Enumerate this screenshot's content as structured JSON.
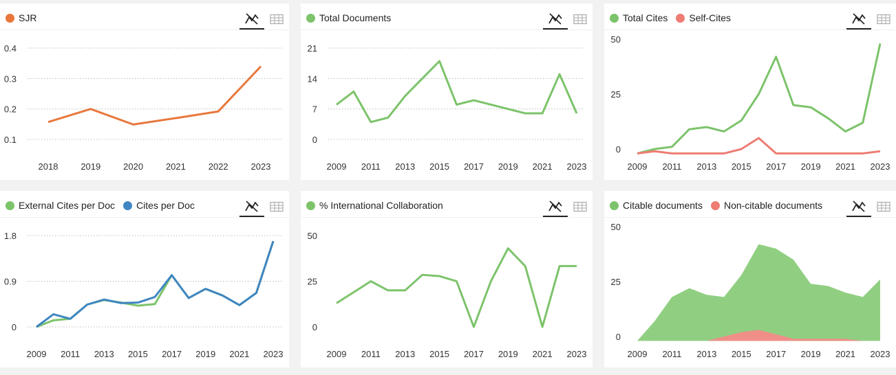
{
  "colors": {
    "orange": "#e8773d",
    "green": "#7cc36a",
    "blue": "#3f86c2",
    "red": "#ee7c73",
    "area_green": "#90cf82",
    "area_red": "#f08f87",
    "grid": "#bbbbbb"
  },
  "icons": {
    "chart_view": "line-chart-icon",
    "table_view": "table-grid-icon"
  },
  "chart_data": [
    {
      "type": "line",
      "legend": [
        {
          "name": "SJR",
          "color": "#e8773d"
        }
      ],
      "x": [
        2018,
        2019,
        2020,
        2021,
        2022,
        2023
      ],
      "x_ticks": [
        "2018",
        "2019",
        "2020",
        "2021",
        "2022",
        "2023"
      ],
      "y_ticks": [
        "0.1",
        "0.2",
        "0.3",
        "0.4"
      ],
      "y_tick_values": [
        0.1,
        0.2,
        0.3,
        0.4
      ],
      "ylim": [
        0.1,
        0.4
      ],
      "grid": true,
      "series": [
        {
          "name": "SJR",
          "color": "#e8773d",
          "values": [
            0.157,
            0.2,
            0.149,
            0.17,
            0.192,
            0.34
          ]
        }
      ]
    },
    {
      "type": "line",
      "legend": [
        {
          "name": "Total Documents",
          "color": "#7cc36a"
        }
      ],
      "x": [
        2009,
        2010,
        2011,
        2012,
        2013,
        2014,
        2015,
        2016,
        2017,
        2018,
        2019,
        2020,
        2021,
        2022,
        2023
      ],
      "x_ticks": [
        "2009",
        "2011",
        "2013",
        "2015",
        "2017",
        "2019",
        "2021",
        "2023"
      ],
      "y_ticks": [
        "0",
        "7",
        "14",
        "21"
      ],
      "y_tick_values": [
        0,
        7,
        14,
        21
      ],
      "ylim": [
        0,
        21
      ],
      "grid": true,
      "series": [
        {
          "name": "Total Documents",
          "color": "#7cc36a",
          "values": [
            8,
            11,
            4,
            5,
            10,
            14,
            18,
            8,
            9,
            8,
            7,
            6,
            6,
            15,
            6
          ]
        }
      ]
    },
    {
      "type": "line",
      "legend": [
        {
          "name": "Total Cites",
          "color": "#7cc36a"
        },
        {
          "name": "Self-Cites",
          "color": "#ee7c73"
        }
      ],
      "x": [
        2009,
        2010,
        2011,
        2012,
        2013,
        2014,
        2015,
        2016,
        2017,
        2018,
        2019,
        2020,
        2021,
        2022,
        2023
      ],
      "x_ticks": [
        "2009",
        "2011",
        "2013",
        "2015",
        "2017",
        "2019",
        "2021",
        "2023"
      ],
      "y_ticks": [
        "0",
        "25",
        "50"
      ],
      "y_tick_values": [
        0,
        25,
        50
      ],
      "ylim": [
        0,
        50
      ],
      "grid": false,
      "series": [
        {
          "name": "Total Cites",
          "color": "#7cc36a",
          "values": [
            -2,
            0,
            1,
            9,
            10,
            8,
            13,
            25,
            42,
            20,
            19,
            14,
            8,
            12,
            48
          ]
        },
        {
          "name": "Self-Cites",
          "color": "#ee7c73",
          "values": [
            -2,
            -1,
            -2,
            -2,
            -2,
            -2,
            0,
            5,
            -2,
            -2,
            -2,
            -2,
            -2,
            -2,
            -1
          ]
        }
      ]
    },
    {
      "type": "line",
      "legend": [
        {
          "name": "External Cites per Doc",
          "color": "#7cc36a"
        },
        {
          "name": "Cites per Doc",
          "color": "#3f86c2"
        }
      ],
      "x": [
        2009,
        2010,
        2011,
        2012,
        2013,
        2014,
        2015,
        2016,
        2017,
        2018,
        2019,
        2020,
        2021,
        2022,
        2023
      ],
      "x_ticks": [
        "2009",
        "2011",
        "2013",
        "2015",
        "2017",
        "2019",
        "2021",
        "2023"
      ],
      "y_ticks": [
        "0",
        "0.9",
        "1.8"
      ],
      "y_tick_values": [
        0,
        0.9,
        1.8
      ],
      "ylim": [
        0,
        1.8
      ],
      "grid": true,
      "series": [
        {
          "name": "External Cites per Doc",
          "color": "#7cc36a",
          "values": [
            0,
            0.13,
            0.16,
            0.44,
            0.53,
            0.48,
            0.42,
            0.45,
            1.02,
            0.57,
            0.75,
            0.62,
            0.43,
            0.67,
            1.69
          ]
        },
        {
          "name": "Cites per Doc",
          "color": "#3f86c2",
          "values": [
            0,
            0.25,
            0.16,
            0.44,
            0.54,
            0.47,
            0.48,
            0.59,
            1.02,
            0.57,
            0.75,
            0.62,
            0.43,
            0.67,
            1.69
          ]
        }
      ]
    },
    {
      "type": "line",
      "legend": [
        {
          "name": "% International Collaboration",
          "color": "#7cc36a"
        }
      ],
      "x": [
        2009,
        2010,
        2011,
        2012,
        2013,
        2014,
        2015,
        2016,
        2017,
        2018,
        2019,
        2020,
        2021,
        2022,
        2023
      ],
      "x_ticks": [
        "2009",
        "2011",
        "2013",
        "2015",
        "2017",
        "2019",
        "2021",
        "2023"
      ],
      "y_ticks": [
        "0",
        "25",
        "50"
      ],
      "y_tick_values": [
        0,
        25,
        50
      ],
      "ylim": [
        0,
        50
      ],
      "grid": false,
      "series": [
        {
          "name": "% International Collaboration",
          "color": "#7cc36a",
          "values": [
            13,
            19,
            25,
            20,
            20,
            28.5,
            27.8,
            25,
            0,
            25,
            43,
            33.3,
            0,
            33.3,
            33.3
          ]
        }
      ]
    },
    {
      "type": "area",
      "legend": [
        {
          "name": "Citable documents",
          "color": "#7cc36a"
        },
        {
          "name": "Non-citable documents",
          "color": "#ee7c73"
        }
      ],
      "x": [
        2009,
        2010,
        2011,
        2012,
        2013,
        2014,
        2015,
        2016,
        2017,
        2018,
        2019,
        2020,
        2021,
        2022,
        2023
      ],
      "x_ticks": [
        "2009",
        "2011",
        "2013",
        "2015",
        "2017",
        "2019",
        "2021",
        "2023"
      ],
      "y_ticks": [
        "0",
        "25",
        "50"
      ],
      "y_tick_values": [
        0,
        25,
        50
      ],
      "ylim": [
        0,
        50
      ],
      "grid": false,
      "series": [
        {
          "name": "Citable documents",
          "color": "#90cf82",
          "values": [
            -2,
            7,
            18,
            22,
            19,
            18,
            28,
            42,
            40,
            35,
            24,
            23,
            20,
            18,
            26
          ]
        },
        {
          "name": "Non-citable documents",
          "color": "#f08f87",
          "values": [
            -2,
            -2,
            -2,
            -2,
            -2,
            0,
            2,
            3,
            1,
            -1,
            -1,
            -1,
            -1,
            -2,
            -2
          ]
        }
      ]
    }
  ]
}
